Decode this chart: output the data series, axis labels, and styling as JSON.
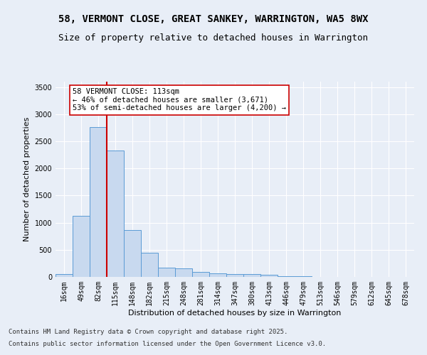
{
  "title_line1": "58, VERMONT CLOSE, GREAT SANKEY, WARRINGTON, WA5 8WX",
  "title_line2": "Size of property relative to detached houses in Warrington",
  "xlabel": "Distribution of detached houses by size in Warrington",
  "ylabel": "Number of detached properties",
  "categories": [
    "16sqm",
    "49sqm",
    "82sqm",
    "115sqm",
    "148sqm",
    "182sqm",
    "215sqm",
    "248sqm",
    "281sqm",
    "314sqm",
    "347sqm",
    "380sqm",
    "413sqm",
    "446sqm",
    "479sqm",
    "513sqm",
    "546sqm",
    "579sqm",
    "612sqm",
    "645sqm",
    "678sqm"
  ],
  "values": [
    55,
    1120,
    2760,
    2330,
    870,
    440,
    170,
    160,
    90,
    70,
    50,
    55,
    35,
    10,
    10,
    5,
    5,
    2,
    2,
    2,
    2
  ],
  "bar_color": "#c8d9ef",
  "bar_edge_color": "#5b9bd5",
  "vline_color": "#cc0000",
  "annotation_text": "58 VERMONT CLOSE: 113sqm\n← 46% of detached houses are smaller (3,671)\n53% of semi-detached houses are larger (4,200) →",
  "annotation_box_color": "#ffffff",
  "annotation_box_edge": "#cc0000",
  "ylim": [
    0,
    3600
  ],
  "yticks": [
    0,
    500,
    1000,
    1500,
    2000,
    2500,
    3000,
    3500
  ],
  "bg_color": "#e8eef7",
  "plot_bg_color": "#e8eef7",
  "grid_color": "#ffffff",
  "footer_line1": "Contains HM Land Registry data © Crown copyright and database right 2025.",
  "footer_line2": "Contains public sector information licensed under the Open Government Licence v3.0.",
  "title_fontsize": 10,
  "subtitle_fontsize": 9,
  "axis_label_fontsize": 8,
  "tick_fontsize": 7,
  "annotation_fontsize": 7.5,
  "footer_fontsize": 6.5
}
